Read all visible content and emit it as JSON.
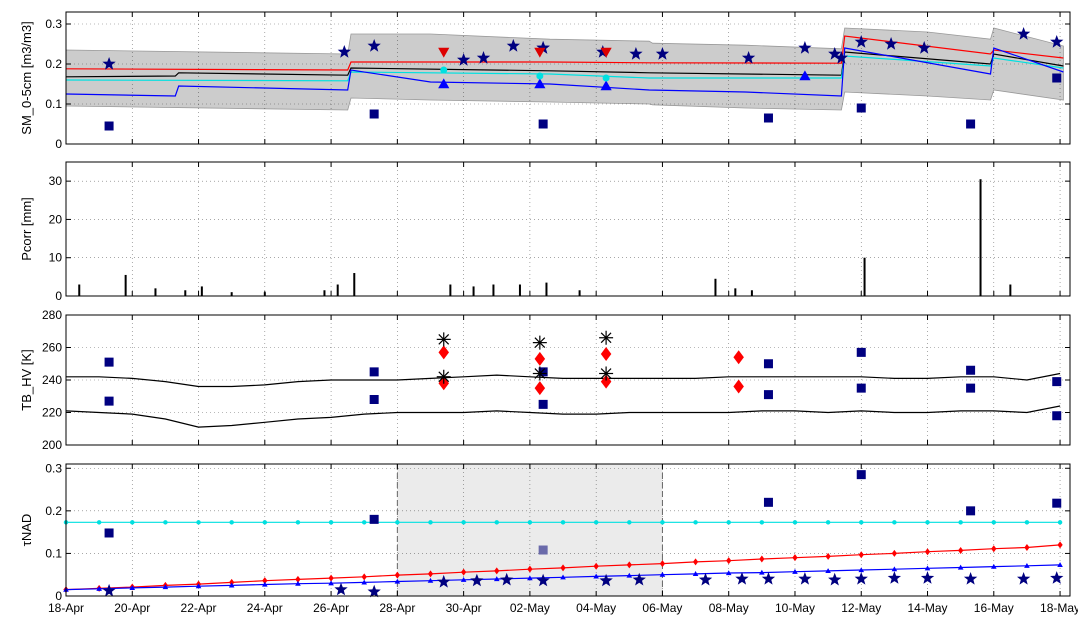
{
  "chart_data": [
    {
      "type": "line",
      "ylabel": "SM_0-5cm [m3/m3]",
      "ylim": [
        0,
        0.33
      ],
      "yticks": [
        0,
        0.1,
        0.2,
        0.3
      ],
      "grid": true,
      "band": {
        "color": "#cccccc",
        "x": [
          0,
          8.5,
          8.6,
          11,
          14.6,
          17.6,
          17.7,
          20.5,
          23.4,
          23.5,
          26,
          27.9,
          28.0,
          30.1
        ],
        "upper": [
          0.235,
          0.225,
          0.275,
          0.275,
          0.262,
          0.257,
          0.252,
          0.247,
          0.238,
          0.29,
          0.28,
          0.262,
          0.29,
          0.245
        ],
        "lower": [
          0.095,
          0.085,
          0.115,
          0.11,
          0.105,
          0.1,
          0.098,
          0.09,
          0.085,
          0.13,
          0.12,
          0.11,
          0.135,
          0.11
        ]
      },
      "series": [
        {
          "color": "#ff0000",
          "x": [
            0,
            8.5,
            8.6,
            14.6,
            17.6,
            23.4,
            23.5,
            27.9,
            28.0,
            30.1
          ],
          "y": [
            0.188,
            0.185,
            0.205,
            0.205,
            0.203,
            0.202,
            0.27,
            0.225,
            0.235,
            0.215
          ]
        },
        {
          "color": "#000000",
          "x": [
            0,
            3.3,
            3.4,
            8.5,
            8.6,
            14.6,
            17.6,
            23.4,
            23.5,
            27.9,
            28.0,
            30.1
          ],
          "y": [
            0.168,
            0.17,
            0.178,
            0.172,
            0.19,
            0.183,
            0.178,
            0.172,
            0.23,
            0.2,
            0.225,
            0.195
          ]
        },
        {
          "color": "#00e0e0",
          "x": [
            0,
            8.5,
            8.6,
            14.6,
            17.6,
            23.4,
            23.5,
            27.9,
            28.0,
            30.1
          ],
          "y": [
            0.16,
            0.158,
            0.18,
            0.175,
            0.165,
            0.165,
            0.22,
            0.195,
            0.215,
            0.19
          ]
        },
        {
          "color": "#0000ff",
          "x": [
            0,
            3.3,
            3.4,
            8.5,
            8.6,
            11,
            14.6,
            17.6,
            20.5,
            23.4,
            23.5,
            27.9,
            28.0,
            30.1
          ],
          "y": [
            0.125,
            0.12,
            0.145,
            0.135,
            0.185,
            0.155,
            0.15,
            0.135,
            0.13,
            0.12,
            0.24,
            0.175,
            0.24,
            0.18
          ]
        }
      ],
      "markers": [
        {
          "shape": "star",
          "color": "#000080",
          "size": 7,
          "x": [
            1.3,
            8.4,
            9.3,
            12.0,
            12.6,
            13.5,
            14.4,
            14.4,
            16.2,
            17.2,
            18.0,
            20.6,
            22.3,
            23.2,
            23.4,
            24.0,
            24.9,
            25.9,
            28.9,
            29.9
          ],
          "y": [
            0.2,
            0.23,
            0.245,
            0.21,
            0.215,
            0.245,
            0.24,
            0.24,
            0.23,
            0.225,
            0.225,
            0.215,
            0.24,
            0.225,
            0.215,
            0.255,
            0.25,
            0.24,
            0.275,
            0.255
          ]
        },
        {
          "shape": "square",
          "color": "#000080",
          "size": 7,
          "x": [
            1.3,
            9.3,
            14.4,
            21.2,
            24.0,
            27.3,
            29.9
          ],
          "y": [
            0.045,
            0.075,
            0.05,
            0.065,
            0.09,
            0.05,
            0.165
          ]
        },
        {
          "shape": "tri-down",
          "color": "#dd0000",
          "size": 7,
          "x": [
            11.4,
            14.3,
            16.3
          ],
          "y": [
            0.23,
            0.23,
            0.23
          ]
        },
        {
          "shape": "tri-up",
          "color": "#0000ff",
          "size": 7,
          "x": [
            11.4,
            14.3,
            16.3,
            22.3
          ],
          "y": [
            0.15,
            0.15,
            0.145,
            0.17
          ]
        },
        {
          "shape": "circle",
          "color": "#00e0e0",
          "size": 6,
          "x": [
            11.4,
            14.3,
            16.3
          ],
          "y": [
            0.185,
            0.17,
            0.165
          ]
        }
      ]
    },
    {
      "type": "bar",
      "ylabel": "Pcorr [mm]",
      "ylim": [
        0,
        35
      ],
      "yticks": [
        0,
        10,
        20,
        30
      ],
      "grid": true,
      "bars": {
        "x": [
          0.4,
          1.8,
          2.7,
          3.6,
          4.1,
          5.0,
          6.0,
          7.8,
          8.2,
          8.7,
          11.6,
          12.3,
          12.9,
          13.7,
          14.5,
          15.5,
          19.6,
          20.2,
          20.7,
          24.1,
          27.6,
          28.5
        ],
        "y": [
          3.0,
          5.5,
          2.0,
          1.5,
          2.5,
          1.0,
          1.0,
          1.5,
          3.0,
          6.0,
          3.0,
          2.5,
          3.0,
          3.0,
          3.5,
          1.5,
          4.5,
          2.0,
          1.5,
          10.0,
          30.5,
          3.0
        ]
      }
    },
    {
      "type": "line",
      "ylabel": "TB_HV [K]",
      "ylim": [
        200,
        280
      ],
      "yticks": [
        200,
        220,
        240,
        260,
        280
      ],
      "grid": true,
      "series": [
        {
          "color": "#000000",
          "x": [
            0,
            1,
            2,
            3,
            4,
            5,
            6,
            7,
            8,
            9,
            10,
            11,
            12,
            13,
            14,
            15,
            16,
            17,
            18,
            19,
            20,
            21,
            22,
            23,
            24,
            25,
            26,
            27,
            28,
            29,
            30
          ],
          "y": [
            242,
            242,
            241,
            239,
            236,
            236,
            237,
            239,
            240,
            240,
            240,
            241,
            242,
            243,
            242,
            241,
            241,
            241,
            241,
            241,
            242,
            242,
            242,
            242,
            242,
            241,
            241,
            242,
            242,
            240,
            244
          ]
        },
        {
          "color": "#000000",
          "x": [
            0,
            1,
            2,
            3,
            4,
            5,
            6,
            7,
            8,
            9,
            10,
            11,
            12,
            13,
            14,
            15,
            16,
            17,
            18,
            19,
            20,
            21,
            22,
            23,
            24,
            25,
            26,
            27,
            28,
            29,
            30
          ],
          "y": [
            221,
            220,
            219,
            216,
            211,
            212,
            214,
            216,
            217,
            219,
            220,
            220,
            220,
            221,
            220,
            219,
            219,
            220,
            220,
            220,
            220,
            221,
            221,
            220,
            221,
            220,
            220,
            221,
            221,
            220,
            224
          ]
        }
      ],
      "markers": [
        {
          "shape": "square",
          "color": "#000080",
          "size": 7,
          "x": [
            1.3,
            1.3,
            9.3,
            9.3,
            14.4,
            14.4,
            21.2,
            21.2,
            24.0,
            24.0,
            27.3,
            27.3,
            29.9,
            29.9
          ],
          "y": [
            251,
            227,
            245,
            228,
            245,
            225,
            250,
            231,
            257,
            235,
            246,
            235,
            239,
            218
          ]
        },
        {
          "shape": "diamond",
          "color": "#ff0000",
          "size": 7,
          "x": [
            11.4,
            11.4,
            14.3,
            14.3,
            16.3,
            16.3,
            20.3,
            20.3
          ],
          "y": [
            257,
            238,
            253,
            235,
            256,
            239,
            254,
            236
          ]
        },
        {
          "shape": "asterisk",
          "color": "#000000",
          "size": 7,
          "x": [
            11.4,
            11.4,
            14.3,
            14.3,
            16.3,
            16.3
          ],
          "y": [
            265,
            242,
            263,
            244,
            266,
            244
          ]
        }
      ]
    },
    {
      "type": "line",
      "ylabel": "τNAD",
      "ylim": [
        0,
        0.31
      ],
      "yticks": [
        0,
        0.1,
        0.2,
        0.3
      ],
      "grid": true,
      "shade": {
        "x0": 10.0,
        "x1": 18.0,
        "color": "#ebebeb"
      },
      "series": [
        {
          "color": "#00e0e0",
          "marker": "circle",
          "x": [
            0,
            1,
            2,
            3,
            4,
            5,
            6,
            7,
            8,
            9,
            10,
            11,
            12,
            13,
            14,
            15,
            16,
            17,
            18,
            19,
            20,
            21,
            22,
            23,
            24,
            25,
            26,
            27,
            28,
            29,
            30
          ],
          "y": [
            0.173,
            0.173,
            0.173,
            0.173,
            0.173,
            0.173,
            0.173,
            0.173,
            0.173,
            0.173,
            0.173,
            0.173,
            0.173,
            0.173,
            0.173,
            0.173,
            0.173,
            0.173,
            0.173,
            0.173,
            0.173,
            0.173,
            0.173,
            0.173,
            0.173,
            0.173,
            0.173,
            0.173,
            0.173,
            0.173,
            0.173
          ]
        },
        {
          "color": "#ff0000",
          "marker": "diamond",
          "x": [
            0,
            1,
            2,
            3,
            4,
            5,
            6,
            7,
            8,
            9,
            10,
            11,
            12,
            13,
            14,
            15,
            16,
            17,
            18,
            19,
            20,
            21,
            22,
            23,
            24,
            25,
            26,
            27,
            28,
            29,
            30
          ],
          "y": [
            0.015,
            0.018,
            0.021,
            0.025,
            0.028,
            0.032,
            0.036,
            0.039,
            0.042,
            0.045,
            0.049,
            0.052,
            0.056,
            0.059,
            0.063,
            0.066,
            0.07,
            0.073,
            0.076,
            0.08,
            0.083,
            0.087,
            0.09,
            0.093,
            0.097,
            0.1,
            0.104,
            0.107,
            0.111,
            0.114,
            0.12
          ]
        },
        {
          "color": "#0000ff",
          "marker": "tri-up",
          "x": [
            0,
            1,
            2,
            3,
            4,
            5,
            6,
            7,
            8,
            9,
            10,
            11,
            12,
            13,
            14,
            15,
            16,
            17,
            18,
            19,
            20,
            21,
            22,
            23,
            24,
            25,
            26,
            27,
            28,
            29,
            30
          ],
          "y": [
            0.015,
            0.017,
            0.019,
            0.021,
            0.023,
            0.025,
            0.027,
            0.029,
            0.03,
            0.032,
            0.034,
            0.036,
            0.038,
            0.04,
            0.042,
            0.044,
            0.046,
            0.048,
            0.05,
            0.052,
            0.054,
            0.055,
            0.057,
            0.059,
            0.061,
            0.063,
            0.065,
            0.067,
            0.069,
            0.071,
            0.073
          ]
        }
      ],
      "markers": [
        {
          "shape": "square",
          "color": "#000080",
          "size": 7,
          "x": [
            1.3,
            9.3,
            21.2,
            24.0,
            27.3,
            29.9
          ],
          "y": [
            0.148,
            0.18,
            0.22,
            0.285,
            0.2,
            0.218
          ]
        },
        {
          "shape": "square",
          "color": "#6a6aaa",
          "size": 7,
          "x": [
            14.4
          ],
          "y": [
            0.108
          ]
        },
        {
          "shape": "star",
          "color": "#000080",
          "size": 7,
          "x": [
            1.3,
            8.3,
            9.3,
            11.4,
            12.4,
            13.3,
            14.4,
            16.3,
            17.3,
            19.3,
            20.4,
            21.2,
            22.3,
            23.2,
            24.0,
            25.0,
            26.0,
            27.3,
            28.9,
            29.9
          ],
          "y": [
            0.012,
            0.015,
            0.01,
            0.033,
            0.036,
            0.038,
            0.036,
            0.036,
            0.038,
            0.038,
            0.04,
            0.04,
            0.04,
            0.038,
            0.04,
            0.042,
            0.042,
            0.04,
            0.04,
            0.042
          ]
        }
      ]
    }
  ],
  "x_axis": {
    "min": 0,
    "max": 30.3,
    "tick_positions": [
      0,
      2,
      4,
      6,
      8,
      10,
      12,
      14,
      16,
      18,
      20,
      22,
      24,
      26,
      28,
      30
    ],
    "tick_labels": [
      "18-Apr",
      "20-Apr",
      "22-Apr",
      "24-Apr",
      "26-Apr",
      "28-Apr",
      "30-Apr",
      "02-May",
      "04-May",
      "06-May",
      "08-May",
      "10-May",
      "12-May",
      "14-May",
      "16-May",
      "18-May"
    ]
  }
}
